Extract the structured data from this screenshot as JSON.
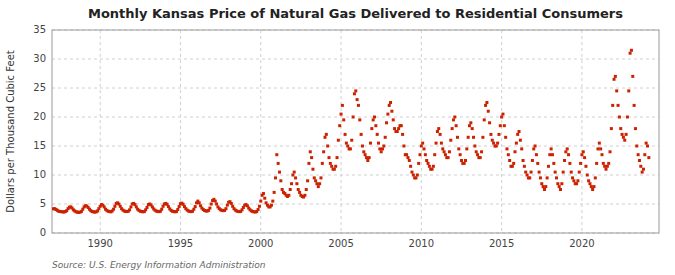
{
  "chart_data": {
    "type": "scatter",
    "title": "Monthly Kansas Price of Natural Gas Delivered to Residential Consumers",
    "ylabel": "Dollars per Thousand Cubic Feet",
    "source": "Source: U.S. Energy Information Administration",
    "color": "#cc2200",
    "marker": "square",
    "grid": true,
    "xlim": [
      1987.0,
      2024.8
    ],
    "ylim": [
      0,
      35
    ],
    "xticks": [
      1990,
      1995,
      2000,
      2005,
      2010,
      2015,
      2020
    ],
    "yticks": [
      0,
      5,
      10,
      15,
      20,
      25,
      30,
      35
    ],
    "x": [
      1987.083,
      1987.167,
      1987.25,
      1987.333,
      1987.417,
      1987.5,
      1987.583,
      1987.667,
      1987.75,
      1987.833,
      1987.917,
      1988.0,
      1988.083,
      1988.167,
      1988.25,
      1988.333,
      1988.417,
      1988.5,
      1988.583,
      1988.667,
      1988.75,
      1988.833,
      1988.917,
      1989.0,
      1989.083,
      1989.167,
      1989.25,
      1989.333,
      1989.417,
      1989.5,
      1989.583,
      1989.667,
      1989.75,
      1989.833,
      1989.917,
      1990.0,
      1990.083,
      1990.167,
      1990.25,
      1990.333,
      1990.417,
      1990.5,
      1990.583,
      1990.667,
      1990.75,
      1990.833,
      1990.917,
      1991.0,
      1991.083,
      1991.167,
      1991.25,
      1991.333,
      1991.417,
      1991.5,
      1991.583,
      1991.667,
      1991.75,
      1991.833,
      1991.917,
      1992.0,
      1992.083,
      1992.167,
      1992.25,
      1992.333,
      1992.417,
      1992.5,
      1992.583,
      1992.667,
      1992.75,
      1992.833,
      1992.917,
      1993.0,
      1993.083,
      1993.167,
      1993.25,
      1993.333,
      1993.417,
      1993.5,
      1993.583,
      1993.667,
      1993.75,
      1993.833,
      1993.917,
      1994.0,
      1994.083,
      1994.167,
      1994.25,
      1994.333,
      1994.417,
      1994.5,
      1994.583,
      1994.667,
      1994.75,
      1994.833,
      1994.917,
      1995.0,
      1995.083,
      1995.167,
      1995.25,
      1995.333,
      1995.417,
      1995.5,
      1995.583,
      1995.667,
      1995.75,
      1995.833,
      1995.917,
      1996.0,
      1996.083,
      1996.167,
      1996.25,
      1996.333,
      1996.417,
      1996.5,
      1996.583,
      1996.667,
      1996.75,
      1996.833,
      1996.917,
      1997.0,
      1997.083,
      1997.167,
      1997.25,
      1997.333,
      1997.417,
      1997.5,
      1997.583,
      1997.667,
      1997.75,
      1997.833,
      1997.917,
      1998.0,
      1998.083,
      1998.167,
      1998.25,
      1998.333,
      1998.417,
      1998.5,
      1998.583,
      1998.667,
      1998.75,
      1998.833,
      1998.917,
      1999.0,
      1999.083,
      1999.167,
      1999.25,
      1999.333,
      1999.417,
      1999.5,
      1999.583,
      1999.667,
      1999.75,
      1999.833,
      1999.917,
      2000.0,
      2000.083,
      2000.167,
      2000.25,
      2000.333,
      2000.417,
      2000.5,
      2000.583,
      2000.667,
      2000.75,
      2000.833,
      2000.917,
      2001.0,
      2001.083,
      2001.167,
      2001.25,
      2001.333,
      2001.417,
      2001.5,
      2001.583,
      2001.667,
      2001.75,
      2001.833,
      2001.917,
      2002.0,
      2002.083,
      2002.167,
      2002.25,
      2002.333,
      2002.417,
      2002.5,
      2002.583,
      2002.667,
      2002.75,
      2002.833,
      2002.917,
      2003.0,
      2003.083,
      2003.167,
      2003.25,
      2003.333,
      2003.417,
      2003.5,
      2003.583,
      2003.667,
      2003.75,
      2003.833,
      2003.917,
      2004.0,
      2004.083,
      2004.167,
      2004.25,
      2004.333,
      2004.417,
      2004.5,
      2004.583,
      2004.667,
      2004.75,
      2004.833,
      2004.917,
      2005.0,
      2005.083,
      2005.167,
      2005.25,
      2005.333,
      2005.417,
      2005.5,
      2005.583,
      2005.667,
      2005.75,
      2005.833,
      2005.917,
      2006.0,
      2006.083,
      2006.167,
      2006.25,
      2006.333,
      2006.417,
      2006.5,
      2006.583,
      2006.667,
      2006.75,
      2006.833,
      2006.917,
      2007.0,
      2007.083,
      2007.167,
      2007.25,
      2007.333,
      2007.417,
      2007.5,
      2007.583,
      2007.667,
      2007.75,
      2007.833,
      2007.917,
      2008.0,
      2008.083,
      2008.167,
      2008.25,
      2008.333,
      2008.417,
      2008.5,
      2008.583,
      2008.667,
      2008.75,
      2008.833,
      2008.917,
      2009.0,
      2009.083,
      2009.167,
      2009.25,
      2009.333,
      2009.417,
      2009.5,
      2009.583,
      2009.667,
      2009.75,
      2009.833,
      2009.917,
      2010.0,
      2010.083,
      2010.167,
      2010.25,
      2010.333,
      2010.417,
      2010.5,
      2010.583,
      2010.667,
      2010.75,
      2010.833,
      2010.917,
      2011.0,
      2011.083,
      2011.167,
      2011.25,
      2011.333,
      2011.417,
      2011.5,
      2011.583,
      2011.667,
      2011.75,
      2011.833,
      2011.917,
      2012.0,
      2012.083,
      2012.167,
      2012.25,
      2012.333,
      2012.417,
      2012.5,
      2012.583,
      2012.667,
      2012.75,
      2012.833,
      2012.917,
      2013.0,
      2013.083,
      2013.167,
      2013.25,
      2013.333,
      2013.417,
      2013.5,
      2013.583,
      2013.667,
      2013.75,
      2013.833,
      2013.917,
      2014.0,
      2014.083,
      2014.167,
      2014.25,
      2014.333,
      2014.417,
      2014.5,
      2014.583,
      2014.667,
      2014.75,
      2014.833,
      2014.917,
      2015.0,
      2015.083,
      2015.167,
      2015.25,
      2015.333,
      2015.417,
      2015.5,
      2015.583,
      2015.667,
      2015.75,
      2015.833,
      2015.917,
      2016.0,
      2016.083,
      2016.167,
      2016.25,
      2016.333,
      2016.417,
      2016.5,
      2016.583,
      2016.667,
      2016.75,
      2016.833,
      2016.917,
      2017.0,
      2017.083,
      2017.167,
      2017.25,
      2017.333,
      2017.417,
      2017.5,
      2017.583,
      2017.667,
      2017.75,
      2017.833,
      2017.917,
      2018.0,
      2018.083,
      2018.167,
      2018.25,
      2018.333,
      2018.417,
      2018.5,
      2018.583,
      2018.667,
      2018.75,
      2018.833,
      2018.917,
      2019.0,
      2019.083,
      2019.167,
      2019.25,
      2019.333,
      2019.417,
      2019.5,
      2019.583,
      2019.667,
      2019.75,
      2019.833,
      2019.917,
      2020.0,
      2020.083,
      2020.167,
      2020.25,
      2020.333,
      2020.417,
      2020.5,
      2020.583,
      2020.667,
      2020.75,
      2020.833,
      2020.917,
      2021.0,
      2021.083,
      2021.167,
      2021.25,
      2021.333,
      2021.417,
      2021.5,
      2021.583,
      2021.667,
      2021.75,
      2021.833,
      2021.917,
      2022.0,
      2022.083,
      2022.167,
      2022.25,
      2022.333,
      2022.417,
      2022.5,
      2022.583,
      2022.667,
      2022.75,
      2022.833,
      2022.917,
      2023.0,
      2023.083,
      2023.167,
      2023.25,
      2023.333,
      2023.417,
      2023.5,
      2023.583,
      2023.667,
      2023.75,
      2023.833,
      2023.917,
      2024.0,
      2024.083,
      2024.167
    ],
    "values": [
      4.17,
      4.19,
      4.06,
      3.9,
      3.75,
      3.7,
      3.68,
      3.65,
      3.62,
      3.7,
      3.85,
      4.2,
      4.45,
      4.5,
      4.3,
      4.0,
      3.8,
      3.65,
      3.6,
      3.55,
      3.6,
      3.72,
      4.1,
      4.5,
      4.7,
      4.65,
      4.4,
      4.1,
      3.85,
      3.7,
      3.65,
      3.6,
      3.65,
      3.8,
      4.2,
      4.6,
      4.9,
      4.8,
      4.5,
      4.1,
      3.9,
      3.75,
      3.7,
      3.65,
      3.8,
      4.1,
      4.6,
      5.1,
      5.2,
      5.0,
      4.6,
      4.2,
      3.95,
      3.8,
      3.72,
      3.7,
      3.75,
      4.0,
      4.5,
      5.0,
      5.1,
      4.9,
      4.5,
      4.1,
      3.9,
      3.75,
      3.7,
      3.65,
      3.7,
      4.0,
      4.4,
      4.9,
      5.0,
      4.85,
      4.5,
      4.15,
      3.92,
      3.78,
      3.72,
      3.68,
      3.75,
      4.1,
      4.6,
      5.0,
      5.1,
      4.95,
      4.55,
      4.15,
      3.9,
      3.75,
      3.7,
      3.65,
      3.7,
      4.05,
      4.55,
      5.05,
      5.15,
      4.95,
      4.55,
      4.2,
      3.95,
      3.8,
      3.72,
      3.68,
      3.75,
      4.1,
      4.55,
      5.2,
      5.5,
      5.2,
      4.7,
      4.3,
      4.05,
      3.88,
      3.8,
      3.78,
      3.9,
      4.3,
      5.0,
      5.6,
      5.8,
      5.5,
      5.0,
      4.5,
      4.2,
      4.0,
      3.9,
      3.85,
      3.9,
      4.2,
      4.8,
      5.3,
      5.4,
      5.1,
      4.6,
      4.2,
      3.95,
      3.8,
      3.72,
      3.68,
      3.72,
      4.0,
      4.4,
      4.8,
      4.9,
      4.7,
      4.3,
      4.0,
      3.82,
      3.7,
      3.65,
      3.62,
      3.7,
      4.05,
      4.6,
      5.5,
      6.5,
      6.8,
      6.0,
      5.2,
      4.8,
      4.5,
      4.5,
      4.8,
      5.5,
      7.0,
      9.5,
      13.5,
      12.0,
      10.5,
      9.0,
      7.5,
      7.0,
      6.8,
      6.5,
      6.3,
      6.5,
      7.5,
      8.5,
      10.0,
      10.5,
      9.5,
      8.5,
      7.5,
      7.0,
      6.5,
      6.3,
      6.2,
      6.5,
      7.5,
      9.0,
      12.0,
      14.0,
      13.0,
      11.0,
      9.5,
      9.0,
      8.5,
      8.0,
      8.5,
      9.5,
      12.0,
      14.0,
      16.5,
      17.0,
      15.0,
      13.0,
      12.0,
      11.5,
      11.0,
      11.0,
      11.5,
      13.0,
      16.0,
      18.5,
      20.5,
      22.0,
      19.5,
      17.0,
      15.5,
      15.0,
      14.5,
      14.5,
      16.0,
      20.0,
      24.0,
      24.5,
      23.0,
      22.0,
      19.5,
      17.0,
      15.0,
      14.0,
      13.5,
      13.0,
      12.5,
      13.0,
      15.5,
      18.0,
      19.5,
      20.0,
      18.5,
      17.0,
      15.5,
      14.5,
      14.0,
      14.5,
      15.0,
      16.5,
      19.0,
      20.5,
      22.0,
      22.5,
      21.0,
      19.5,
      18.0,
      17.5,
      17.5,
      18.0,
      18.5,
      18.5,
      17.0,
      15.0,
      13.5,
      13.5,
      13.0,
      12.5,
      11.5,
      10.5,
      10.0,
      9.5,
      9.5,
      10.0,
      12.0,
      13.5,
      15.0,
      15.5,
      14.5,
      13.5,
      12.5,
      12.0,
      11.5,
      11.0,
      11.0,
      11.5,
      13.5,
      15.5,
      17.5,
      18.0,
      17.0,
      15.5,
      14.5,
      14.0,
      13.5,
      13.0,
      13.0,
      14.0,
      16.0,
      18.0,
      19.5,
      20.0,
      18.5,
      16.5,
      14.5,
      13.5,
      12.5,
      12.0,
      12.0,
      12.5,
      14.5,
      16.5,
      18.5,
      19.0,
      18.0,
      16.5,
      15.0,
      14.0,
      13.5,
      13.0,
      13.0,
      14.0,
      16.5,
      19.5,
      22.0,
      22.5,
      21.0,
      19.0,
      17.0,
      16.0,
      15.5,
      15.0,
      15.0,
      15.5,
      17.0,
      18.5,
      20.0,
      20.5,
      18.5,
      16.5,
      14.5,
      13.5,
      12.5,
      11.5,
      11.5,
      12.0,
      14.0,
      15.5,
      17.0,
      17.5,
      16.0,
      14.5,
      12.5,
      11.5,
      10.5,
      10.0,
      9.5,
      9.5,
      10.5,
      12.5,
      14.5,
      15.0,
      13.5,
      12.0,
      10.5,
      9.5,
      8.5,
      8.0,
      7.5,
      8.0,
      9.5,
      11.5,
      13.5,
      14.5,
      13.5,
      12.0,
      10.5,
      9.5,
      8.5,
      8.0,
      7.5,
      8.5,
      10.5,
      12.5,
      14.0,
      14.5,
      13.5,
      12.0,
      10.5,
      9.5,
      9.0,
      8.5,
      8.5,
      9.0,
      10.5,
      12.0,
      13.5,
      14.0,
      13.0,
      11.5,
      10.0,
      9.0,
      8.5,
      8.0,
      7.5,
      8.0,
      9.5,
      12.0,
      14.5,
      15.5,
      14.5,
      13.5,
      12.0,
      11.5,
      11.0,
      11.5,
      12.0,
      14.0,
      18.0,
      22.0,
      26.5,
      27.0,
      24.5,
      22.0,
      20.0,
      18.0,
      17.0,
      16.5,
      16.0,
      17.0,
      20.0,
      24.5,
      31.0,
      31.5,
      27.0,
      22.0,
      18.0,
      15.0,
      13.5,
      12.5,
      11.5,
      10.5,
      11.0,
      13.5,
      15.5,
      15.0,
      13.0
    ]
  }
}
